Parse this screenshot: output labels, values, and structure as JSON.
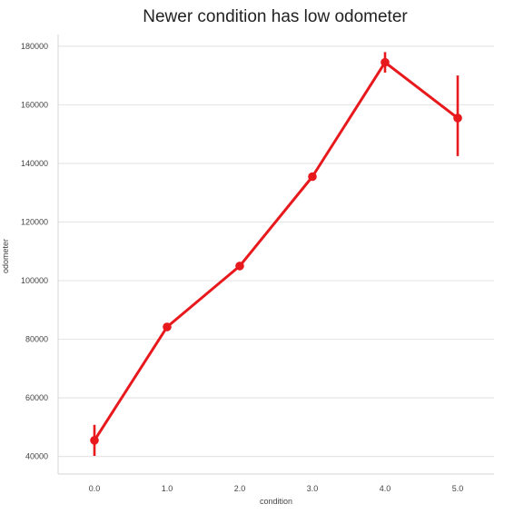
{
  "chart_data": {
    "type": "line",
    "title": "Newer condition has low odometer",
    "xlabel": "condition",
    "ylabel": "odometer",
    "categories": [
      "0.0",
      "1.0",
      "2.0",
      "3.0",
      "4.0",
      "5.0"
    ],
    "series": [
      {
        "values": [
          45500,
          84200,
          105000,
          135500,
          174500,
          155500
        ],
        "error_low": [
          40200,
          83200,
          104300,
          134900,
          171000,
          142500
        ],
        "error_high": [
          50800,
          85200,
          105700,
          136100,
          178000,
          170000
        ],
        "color": "#e8191d"
      }
    ],
    "yticks": [
      40000,
      60000,
      80000,
      100000,
      120000,
      140000,
      160000,
      180000
    ],
    "yticklabels": [
      "40000",
      "60000",
      "80000",
      "100000",
      "120000",
      "140000",
      "160000",
      "180000"
    ],
    "ylim": [
      34000,
      184000
    ],
    "grid": "horizontal",
    "legend": "none"
  }
}
